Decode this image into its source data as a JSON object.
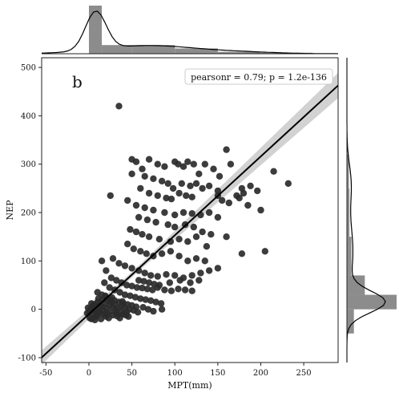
{
  "chart_data": {
    "type": "scatter",
    "title": "",
    "panel_label": "b",
    "xlabel": "MPT(mm)",
    "ylabel": "NEP",
    "xlim": [
      -55,
      290
    ],
    "ylim": [
      -110,
      520
    ],
    "x_ticks": [
      -50,
      0,
      50,
      100,
      150,
      200,
      250
    ],
    "y_ticks": [
      -100,
      0,
      100,
      200,
      300,
      400,
      500
    ],
    "annotation": "pearsonr = 0.79; p = 1.2e-136",
    "annotation_placement": "top-right",
    "regression_line": {
      "slope": 1.63,
      "intercept": -10,
      "ci_band": true
    },
    "marginal_x": {
      "type": "histogram_kde",
      "bins": [
        {
          "start": 0,
          "end": 15,
          "density": 1.0
        },
        {
          "start": 15,
          "end": 50,
          "density": 0.18
        },
        {
          "start": 50,
          "end": 100,
          "density": 0.18
        },
        {
          "start": 100,
          "end": 150,
          "density": 0.11
        },
        {
          "start": 150,
          "end": 200,
          "density": 0.04
        },
        {
          "start": 200,
          "end": 260,
          "density": 0.02
        }
      ]
    },
    "marginal_y": {
      "type": "histogram_kde",
      "bins": [
        {
          "start": -50,
          "end": 0,
          "density": 0.14
        },
        {
          "start": 0,
          "end": 30,
          "density": 1.0
        },
        {
          "start": 30,
          "end": 70,
          "density": 0.36
        },
        {
          "start": 70,
          "end": 150,
          "density": 0.09
        },
        {
          "start": 150,
          "end": 250,
          "density": 0.05
        },
        {
          "start": 250,
          "end": 320,
          "density": 0.04
        }
      ]
    },
    "points": [
      [
        35,
        420
      ],
      [
        50,
        310
      ],
      [
        55,
        305
      ],
      [
        62,
        290
      ],
      [
        70,
        310
      ],
      [
        80,
        300
      ],
      [
        88,
        295
      ],
      [
        100,
        305
      ],
      [
        104,
        300
      ],
      [
        110,
        295
      ],
      [
        115,
        305
      ],
      [
        122,
        300
      ],
      [
        128,
        280
      ],
      [
        135,
        300
      ],
      [
        145,
        290
      ],
      [
        152,
        275
      ],
      [
        160,
        330
      ],
      [
        165,
        300
      ],
      [
        50,
        280
      ],
      [
        65,
        275
      ],
      [
        75,
        270
      ],
      [
        85,
        265
      ],
      [
        92,
        260
      ],
      [
        98,
        250
      ],
      [
        108,
        260
      ],
      [
        118,
        255
      ],
      [
        125,
        260
      ],
      [
        132,
        250
      ],
      [
        140,
        255
      ],
      [
        150,
        245
      ],
      [
        215,
        285
      ],
      [
        232,
        260
      ],
      [
        155,
        225
      ],
      [
        163,
        220
      ],
      [
        172,
        235
      ],
      [
        178,
        250
      ],
      [
        188,
        255
      ],
      [
        196,
        245
      ],
      [
        60,
        250
      ],
      [
        70,
        240
      ],
      [
        80,
        235
      ],
      [
        90,
        230
      ],
      [
        96,
        228
      ],
      [
        105,
        240
      ],
      [
        113,
        235
      ],
      [
        120,
        232
      ],
      [
        25,
        235
      ],
      [
        150,
        235
      ],
      [
        180,
        240
      ],
      [
        200,
        205
      ],
      [
        175,
        230
      ],
      [
        185,
        215
      ],
      [
        45,
        225
      ],
      [
        55,
        215
      ],
      [
        65,
        210
      ],
      [
        75,
        205
      ],
      [
        88,
        200
      ],
      [
        100,
        195
      ],
      [
        110,
        200
      ],
      [
        120,
        198
      ],
      [
        130,
        195
      ],
      [
        140,
        200
      ],
      [
        150,
        190
      ],
      [
        160,
        150
      ],
      [
        178,
        115
      ],
      [
        205,
        120
      ],
      [
        58,
        190
      ],
      [
        68,
        185
      ],
      [
        78,
        180
      ],
      [
        92,
        175
      ],
      [
        100,
        170
      ],
      [
        112,
        175
      ],
      [
        122,
        170
      ],
      [
        132,
        160
      ],
      [
        142,
        155
      ],
      [
        48,
        165
      ],
      [
        55,
        160
      ],
      [
        62,
        155
      ],
      [
        70,
        150
      ],
      [
        82,
        145
      ],
      [
        95,
        140
      ],
      [
        105,
        145
      ],
      [
        115,
        140
      ],
      [
        125,
        150
      ],
      [
        137,
        130
      ],
      [
        45,
        135
      ],
      [
        52,
        125
      ],
      [
        60,
        120
      ],
      [
        67,
        115
      ],
      [
        75,
        110
      ],
      [
        85,
        115
      ],
      [
        95,
        120
      ],
      [
        105,
        110
      ],
      [
        115,
        100
      ],
      [
        125,
        105
      ],
      [
        135,
        100
      ],
      [
        15,
        100
      ],
      [
        28,
        105
      ],
      [
        35,
        95
      ],
      [
        42,
        90
      ],
      [
        50,
        85
      ],
      [
        58,
        80
      ],
      [
        65,
        75
      ],
      [
        72,
        70
      ],
      [
        80,
        68
      ],
      [
        90,
        72
      ],
      [
        100,
        70
      ],
      [
        110,
        65
      ],
      [
        120,
        70
      ],
      [
        130,
        75
      ],
      [
        140,
        80
      ],
      [
        150,
        85
      ],
      [
        20,
        80
      ],
      [
        26,
        65
      ],
      [
        32,
        60
      ],
      [
        38,
        55
      ],
      [
        44,
        50
      ],
      [
        50,
        48
      ],
      [
        56,
        45
      ],
      [
        62,
        44
      ],
      [
        68,
        42
      ],
      [
        74,
        40
      ],
      [
        80,
        45
      ],
      [
        88,
        40
      ],
      [
        96,
        38
      ],
      [
        104,
        42
      ],
      [
        112,
        40
      ],
      [
        120,
        38
      ],
      [
        18,
        55
      ],
      [
        24,
        45
      ],
      [
        30,
        40
      ],
      [
        36,
        35
      ],
      [
        42,
        30
      ],
      [
        48,
        28
      ],
      [
        54,
        25
      ],
      [
        60,
        22
      ],
      [
        66,
        20
      ],
      [
        72,
        18
      ],
      [
        78,
        15
      ],
      [
        84,
        12
      ],
      [
        10,
        35
      ],
      [
        15,
        30
      ],
      [
        20,
        25
      ],
      [
        25,
        20
      ],
      [
        30,
        18
      ],
      [
        35,
        15
      ],
      [
        40,
        12
      ],
      [
        45,
        10
      ],
      [
        50,
        8
      ],
      [
        55,
        5
      ],
      [
        0,
        -5
      ],
      [
        2,
        0
      ],
      [
        4,
        5
      ],
      [
        5,
        -10
      ],
      [
        6,
        10
      ],
      [
        8,
        -15
      ],
      [
        8,
        2
      ],
      [
        10,
        15
      ],
      [
        12,
        -5
      ],
      [
        12,
        8
      ],
      [
        14,
        -20
      ],
      [
        15,
        5
      ],
      [
        16,
        20
      ],
      [
        18,
        -10
      ],
      [
        18,
        12
      ],
      [
        20,
        3
      ],
      [
        20,
        -15
      ],
      [
        22,
        18
      ],
      [
        24,
        -5
      ],
      [
        24,
        8
      ],
      [
        26,
        14
      ],
      [
        28,
        -12
      ],
      [
        28,
        4
      ],
      [
        30,
        10
      ],
      [
        32,
        -8
      ],
      [
        34,
        2
      ],
      [
        36,
        -18
      ],
      [
        38,
        6
      ],
      [
        40,
        -10
      ],
      [
        42,
        2
      ],
      [
        44,
        -5
      ],
      [
        46,
        -15
      ],
      [
        3,
        -20
      ],
      [
        6,
        -2
      ],
      [
        9,
        -12
      ],
      [
        11,
        22
      ],
      [
        13,
        -8
      ],
      [
        17,
        -2
      ],
      [
        19,
        28
      ],
      [
        21,
        -8
      ],
      [
        23,
        -18
      ],
      [
        -2,
        -8
      ],
      [
        -1,
        3
      ],
      [
        1,
        -18
      ],
      [
        3,
        12
      ],
      [
        7,
        -22
      ],
      [
        27,
        24
      ],
      [
        31,
        -2
      ],
      [
        33,
        -14
      ],
      [
        37,
        -6
      ],
      [
        39,
        16
      ],
      [
        43,
        -12
      ],
      [
        47,
        0
      ],
      [
        52,
        -2
      ],
      [
        57,
        -6
      ],
      [
        63,
        4
      ],
      [
        69,
        0
      ],
      [
        75,
        -4
      ],
      [
        85,
        0
      ],
      [
        58,
        60
      ],
      [
        64,
        58
      ],
      [
        70,
        55
      ],
      [
        76,
        52
      ],
      [
        82,
        50
      ],
      [
        94,
        55
      ],
      [
        106,
        60
      ],
      [
        118,
        55
      ],
      [
        128,
        60
      ]
    ]
  }
}
